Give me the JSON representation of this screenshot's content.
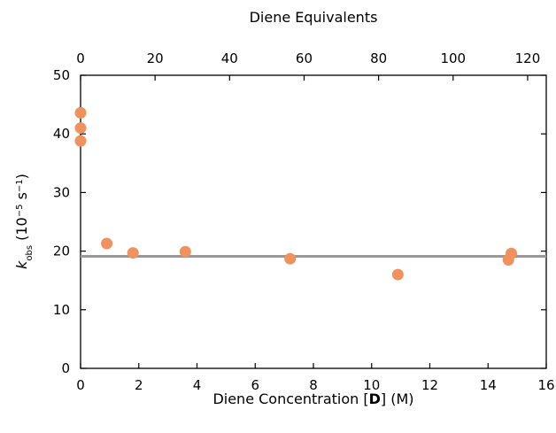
{
  "chart_data": {
    "type": "scatter",
    "title": "",
    "xlabel": "Diene Concentration [D] (M)",
    "xlabel_parts": {
      "pre": "Diene Concentration [",
      "bold": "D",
      "post": "] (M)"
    },
    "ylabel_parts": {
      "k": "k",
      "sub": "obs",
      "open": " (10",
      "exp1": "−5",
      "mid": " s",
      "exp2": "−1",
      "close": ")"
    },
    "x2label": "Diene Equivalents",
    "xlim": [
      0,
      16
    ],
    "ylim": [
      0,
      50
    ],
    "x2lim": [
      0,
      125
    ],
    "xticks": [
      0,
      2,
      4,
      6,
      8,
      10,
      12,
      14,
      16
    ],
    "yticks": [
      0,
      10,
      20,
      30,
      40,
      50
    ],
    "x2ticks": [
      0,
      20,
      40,
      60,
      80,
      100,
      120
    ],
    "grid": false,
    "series": [
      {
        "marker_color": "#f0915e",
        "points": [
          {
            "x": 0.0,
            "y": 43.6
          },
          {
            "x": 0.0,
            "y": 41.0
          },
          {
            "x": 0.0,
            "y": 38.8
          },
          {
            "x": 0.9,
            "y": 21.3
          },
          {
            "x": 1.8,
            "y": 19.7
          },
          {
            "x": 3.6,
            "y": 19.9
          },
          {
            "x": 7.2,
            "y": 18.7
          },
          {
            "x": 10.9,
            "y": 16.0
          },
          {
            "x": 14.7,
            "y": 18.5
          },
          {
            "x": 14.8,
            "y": 19.6
          }
        ]
      }
    ],
    "reference_line": {
      "y": 19.1,
      "color": "#999999"
    }
  }
}
